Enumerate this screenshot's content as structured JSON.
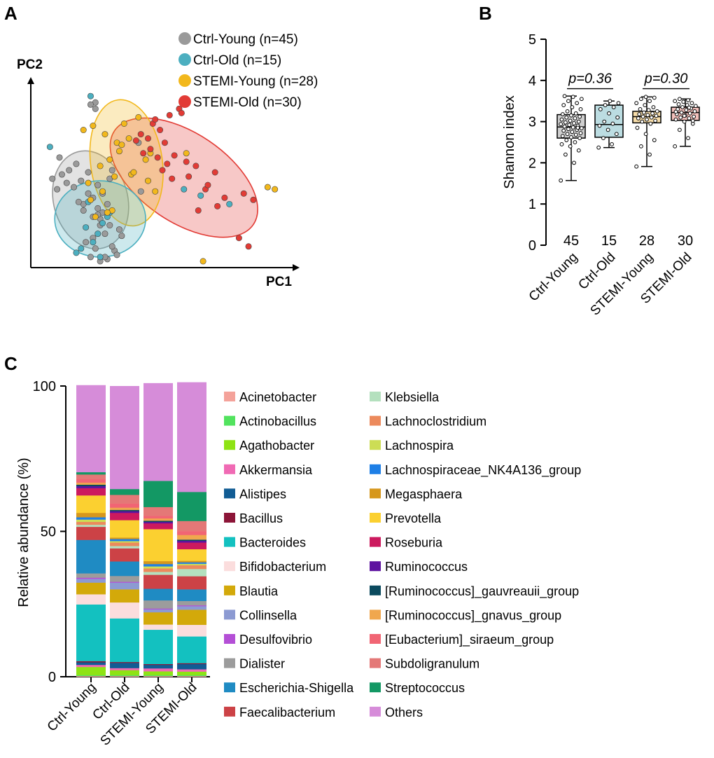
{
  "panels": {
    "a": "A",
    "b": "B",
    "c": "C"
  },
  "colors": {
    "ctrl_young": "#9a9a9a",
    "ctrl_old": "#4cafc0",
    "stemi_young": "#f2b81c",
    "stemi_old": "#e23b35"
  },
  "chart_data": [
    {
      "type": "scatter",
      "id": "pcoa",
      "title": "",
      "xlabel": "PC1",
      "ylabel": "PC2",
      "legend_position": "top-right",
      "series": [
        {
          "name": "Ctrl-Young (n=45)",
          "key": "ctrl_young",
          "n": 45,
          "ellipse": {
            "cx": 2.5,
            "cy": 3.2,
            "rx": 1.55,
            "ry": 2.35,
            "angle": -15
          },
          "x": [
            1.9,
            1.2,
            1.6,
            1.3,
            0.9,
            1.8,
            2.1,
            2.4,
            2.6,
            2.2,
            2.8,
            3.0,
            2.9,
            3.3,
            3.1,
            2.6,
            2.3,
            2.7,
            3.5,
            3.4,
            3.6,
            3.2,
            2.5,
            2.9,
            3.1,
            3.7,
            3.0,
            2.8,
            3.3,
            2.4,
            2.6,
            2.9,
            2.2,
            1.5,
            1.1,
            2.0,
            3.8,
            3.2,
            2.7,
            2.5,
            3.4,
            4.6,
            4.5,
            2.7,
            2.8
          ],
          "y": [
            4.9,
            5.2,
            4.6,
            4.4,
            4.2,
            3.8,
            4.1,
            3.5,
            3.3,
            3.0,
            2.8,
            2.6,
            2.3,
            2.0,
            1.6,
            1.4,
            1.2,
            0.9,
            0.8,
            1.0,
            0.6,
            0.4,
            0.5,
            0.3,
            0.5,
            1.8,
            3.5,
            3.9,
            4.2,
            4.5,
            2.4,
            2.0,
            2.7,
            4.0,
            3.7,
            3.1,
            1.5,
            3.0,
            7.8,
            7.7,
            4.6,
            3.6,
            5.9,
            7.5,
            2.5
          ]
        },
        {
          "name": "Ctrl-Old (n=15)",
          "key": "ctrl_old",
          "n": 15,
          "x": [
            0.8,
            2.3,
            2.1,
            2.8,
            2.6,
            3.0,
            3.3,
            2.9,
            1.9,
            2.4,
            3.2,
            6.4,
            7.1,
            8.3,
            2.5
          ],
          "y": [
            5.7,
            1.9,
            0.9,
            1.6,
            1.2,
            2.1,
            2.6,
            0.5,
            0.7,
            3.1,
            2.4,
            3.7,
            3.4,
            3.0,
            8.1
          ]
        },
        {
          "name": "STEMI-Young (n=28)",
          "key": "stemi_young",
          "n": 28,
          "x": [
            2.6,
            2.2,
            3.1,
            3.6,
            3.9,
            4.1,
            4.5,
            3.3,
            2.9,
            3.7,
            4.2,
            2.5,
            3.0,
            2.7,
            3.4,
            4.8,
            5.0,
            4.3,
            2.4,
            4.9,
            9.9,
            10.2,
            6.5,
            3.8,
            3.5,
            3.2,
            7.2,
            5.2
          ],
          "y": [
            6.7,
            6.5,
            6.3,
            5.9,
            6.8,
            6.1,
            7.1,
            5.1,
            4.8,
            5.5,
            4.4,
            3.2,
            3.6,
            2.4,
            2.7,
            5.1,
            5.4,
            4.5,
            4.0,
            4.1,
            3.8,
            3.7,
            5.4,
            5.8,
            4.3,
            2.6,
            0.3,
            3.6
          ]
        },
        {
          "name": "STEMI-Old (n=30)",
          "key": "stemi_old",
          "n": 30,
          "ellipse": {
            "cx": 6.4,
            "cy": 4.25,
            "rx": 3.5,
            "ry": 2.1,
            "angle": 34
          },
          "x": [
            5.1,
            5.4,
            5.8,
            6.2,
            4.6,
            4.9,
            5.6,
            5.0,
            5.3,
            6.5,
            6.9,
            5.5,
            5.9,
            7.3,
            8.1,
            7.8,
            8.7,
            9.1,
            7.4,
            6.6,
            4.4,
            4.7,
            6.0,
            8.9,
            9.3,
            6.3,
            5.2,
            7.0,
            7.7,
            5.7
          ],
          "y": [
            6.8,
            6.5,
            7.2,
            7.5,
            6.3,
            6.1,
            5.9,
            5.6,
            5.2,
            5.0,
            4.8,
            4.6,
            4.2,
            3.7,
            3.3,
            2.9,
            1.4,
            1.0,
            3.9,
            4.3,
            6.0,
            5.4,
            5.3,
            3.5,
            3.2,
            7.3,
            7.0,
            2.7,
            4.5,
            4.9
          ]
        },
        {
          "name": "",
          "key": "ellipse_young",
          "n": 0,
          "ellipse": {
            "cx": 4.0,
            "cy": 4.95,
            "rx": 1.5,
            "ry": 3.0,
            "angle": -8
          },
          "x": [],
          "y": []
        },
        {
          "name": "",
          "key": "ellipse_old",
          "n": 0,
          "ellipse": {
            "cx": 2.9,
            "cy": 2.3,
            "rx": 1.9,
            "ry": 1.8,
            "angle": 0
          },
          "x": [],
          "y": []
        }
      ],
      "xlim": [
        0,
        11
      ],
      "ylim": [
        0,
        9
      ]
    },
    {
      "type": "box",
      "id": "shannon",
      "ylabel": "Shannon index",
      "ylim": [
        0,
        5
      ],
      "yticks": [
        "0",
        "1",
        "2",
        "3",
        "4",
        "5"
      ],
      "categories": [
        "Ctrl-Young",
        "Ctrl-Old",
        "STEMI-Young",
        "STEMI-Old"
      ],
      "counts": [
        "45",
        "15",
        "28",
        "30"
      ],
      "fills": [
        "#cfcfcf",
        "#bcdde2",
        "#f8deaa",
        "#f3c0bb"
      ],
      "boxes": [
        {
          "min": 1.57,
          "q1": 2.6,
          "median": 2.87,
          "q3": 3.17,
          "max": 3.62
        },
        {
          "min": 2.37,
          "q1": 2.62,
          "median": 2.93,
          "q3": 3.4,
          "max": 3.5
        },
        {
          "min": 1.91,
          "q1": 2.97,
          "median": 3.12,
          "q3": 3.25,
          "max": 3.6
        },
        {
          "min": 2.4,
          "q1": 3.03,
          "median": 3.22,
          "q3": 3.35,
          "max": 3.55
        }
      ],
      "points": [
        [
          1.57,
          2.0,
          2.2,
          2.3,
          2.4,
          2.45,
          2.5,
          2.55,
          2.6,
          2.62,
          2.65,
          2.68,
          2.7,
          2.72,
          2.75,
          2.78,
          2.8,
          2.82,
          2.84,
          2.86,
          2.88,
          2.9,
          2.92,
          2.94,
          2.96,
          2.98,
          3.0,
          3.02,
          3.05,
          3.08,
          3.1,
          3.12,
          3.15,
          3.18,
          3.2,
          3.25,
          3.3,
          3.35,
          3.4,
          3.45,
          3.5,
          3.55,
          3.6,
          3.62,
          2.85
        ],
        [
          2.37,
          2.45,
          2.6,
          2.7,
          2.8,
          2.9,
          2.95,
          3.0,
          3.1,
          3.2,
          3.3,
          3.35,
          3.4,
          3.45,
          3.5
        ],
        [
          1.91,
          2.2,
          2.4,
          2.55,
          2.7,
          2.85,
          2.95,
          3.0,
          3.02,
          3.05,
          3.08,
          3.1,
          3.12,
          3.14,
          3.16,
          3.18,
          3.2,
          3.22,
          3.25,
          3.28,
          3.3,
          3.35,
          3.4,
          3.45,
          3.5,
          3.55,
          3.58,
          3.6
        ],
        [
          2.4,
          2.6,
          2.8,
          2.95,
          3.0,
          3.05,
          3.08,
          3.1,
          3.12,
          3.15,
          3.18,
          3.2,
          3.22,
          3.25,
          3.28,
          3.3,
          3.32,
          3.35,
          3.38,
          3.4,
          3.42,
          3.45,
          3.48,
          3.5,
          3.52,
          3.55,
          3.02,
          3.14,
          3.24,
          3.34
        ]
      ],
      "comparisons": [
        {
          "label": "p=0.36",
          "from": 0,
          "to": 1,
          "y": 3.8
        },
        {
          "label": "p=0.30",
          "from": 2,
          "to": 3,
          "y": 3.8
        }
      ]
    },
    {
      "type": "stacked-bar",
      "id": "abundance",
      "ylabel": "Relative abundance (%)",
      "ylim": [
        0,
        100
      ],
      "yticks": [
        "0",
        "50",
        "100"
      ],
      "categories": [
        "Ctrl-Young",
        "Ctrl-Old",
        "STEMI-Young",
        "STEMI-Old"
      ],
      "series": [
        {
          "name": "Acinetobacter",
          "color": "#f4a29a",
          "values": [
            0.3,
            0.3,
            0.3,
            0.3
          ]
        },
        {
          "name": "Actinobacillus",
          "color": "#52e35e",
          "values": [
            0.3,
            0.3,
            0.3,
            0.3
          ]
        },
        {
          "name": "Agathobacter",
          "color": "#8ee314",
          "values": [
            2.8,
            1.7,
            1.3,
            1.2
          ]
        },
        {
          "name": "Akkermansia",
          "color": "#f06ab4",
          "values": [
            0.7,
            0.7,
            1.0,
            0.8
          ]
        },
        {
          "name": "Alistipes",
          "color": "#115c94",
          "values": [
            0.9,
            1.8,
            1.2,
            1.8
          ]
        },
        {
          "name": "Bacillus",
          "color": "#8c1538",
          "values": [
            0.4,
            0.3,
            0.3,
            0.3
          ]
        },
        {
          "name": "Bacteroides",
          "color": "#13c1c0",
          "values": [
            19.5,
            15.0,
            11.8,
            9.2
          ]
        },
        {
          "name": "Bifidobacterium",
          "color": "#fbdddd",
          "values": [
            3.5,
            5.5,
            1.8,
            4.0
          ]
        },
        {
          "name": "Blautia",
          "color": "#d3a90a",
          "values": [
            4.0,
            4.5,
            4.2,
            5.2
          ]
        },
        {
          "name": "Collinsella",
          "color": "#8c9ad2",
          "values": [
            1.3,
            2.3,
            1.0,
            1.2
          ]
        },
        {
          "name": "Desulfovibrio",
          "color": "#b44fd6",
          "values": [
            0.4,
            0.3,
            0.3,
            0.3
          ]
        },
        {
          "name": "Dialister",
          "color": "#9c9c9c",
          "values": [
            1.5,
            2.0,
            2.8,
            1.5
          ]
        },
        {
          "name": "Escherichia-Shigella",
          "color": "#1f8bc3",
          "values": [
            11.5,
            5.0,
            4.0,
            4.0
          ]
        },
        {
          "name": "Faecalibacterium",
          "color": "#cc4246",
          "values": [
            4.5,
            4.5,
            4.8,
            4.5
          ]
        },
        {
          "name": "Klebsiella",
          "color": "#b4e0be",
          "values": [
            0.7,
            0.8,
            1.0,
            2.5
          ]
        },
        {
          "name": "Lachnoclostridium",
          "color": "#ec8a5c",
          "values": [
            1.0,
            1.2,
            1.2,
            1.3
          ]
        },
        {
          "name": "Lachnospira",
          "color": "#ccdd55",
          "values": [
            0.8,
            0.5,
            0.7,
            0.5
          ]
        },
        {
          "name": "Lachnospiraceae_NK4A136_group",
          "color": "#1e7fe6",
          "values": [
            0.8,
            0.7,
            0.8,
            0.5
          ]
        },
        {
          "name": "Megasphaera",
          "color": "#d6971c",
          "values": [
            1.5,
            0.5,
            1.0,
            0.5
          ]
        },
        {
          "name": "Prevotella",
          "color": "#fbd030",
          "values": [
            6.0,
            6.0,
            11.0,
            4.0
          ]
        },
        {
          "name": "Roseburia",
          "color": "#cc1a5e",
          "values": [
            2.5,
            2.5,
            2.0,
            2.3
          ]
        },
        {
          "name": "Ruminococcus",
          "color": "#5e13a0",
          "values": [
            0.7,
            0.6,
            0.5,
            0.6
          ]
        },
        {
          "name": "[Ruminococcus]_gauvreauii_group",
          "color": "#0b4a5e",
          "values": [
            0.5,
            0.4,
            0.4,
            0.4
          ]
        },
        {
          "name": "[Ruminococcus]_gnavus_group",
          "color": "#f0a74e",
          "values": [
            0.7,
            0.8,
            0.8,
            1.6
          ]
        },
        {
          "name": "[Eubacterium]_siraeum_group",
          "color": "#f16574",
          "values": [
            1.2,
            1.4,
            0.9,
            1.3
          ]
        },
        {
          "name": "Subdoligranulum",
          "color": "#e47877",
          "values": [
            1.6,
            3.0,
            3.0,
            3.5
          ]
        },
        {
          "name": "Streptococcus",
          "color": "#139864",
          "values": [
            0.8,
            2.0,
            9.0,
            10.0
          ]
        },
        {
          "name": "Others",
          "color": "#d68cd9",
          "values": [
            29.9,
            35.4,
            33.6,
            37.7
          ]
        }
      ]
    }
  ]
}
